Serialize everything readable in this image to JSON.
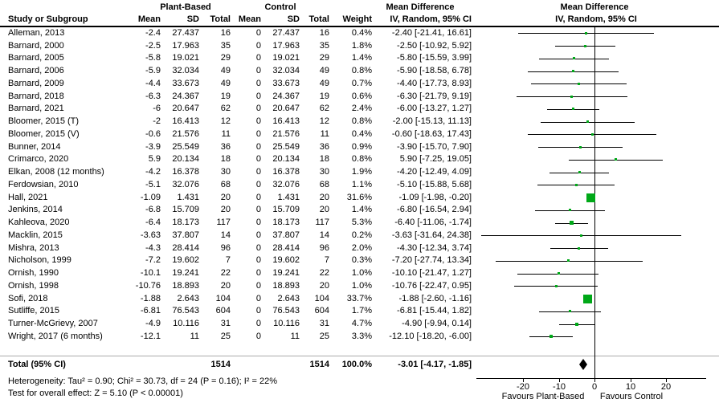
{
  "header": {
    "group1": "Plant-Based",
    "group2": "Control",
    "md_col_title": "Mean Difference",
    "plot_title": "Mean Difference",
    "study_col": "Study or Subgroup",
    "mean": "Mean",
    "sd": "SD",
    "total": "Total",
    "weight": "Weight",
    "iv_label": "IV, Random, 95% CI",
    "iv_label_plot": "IV, Random, 95% CI"
  },
  "chart_data": {
    "type": "forest",
    "effect_measure": "Mean Difference, IV, Random, 95% CI",
    "axis": {
      "tick_values": [
        -20,
        -10,
        0,
        10,
        20
      ],
      "tick_labels": [
        "-20",
        "-10",
        "0",
        "10",
        "20"
      ],
      "xmin": -33,
      "xmax": 31,
      "favours_left": "Favours Plant-Based",
      "favours_right": "Favours Control"
    },
    "studies": [
      {
        "name": "Alleman, 2013",
        "mean1": "-2.4",
        "sd1": "27.437",
        "n1": "16",
        "mean2": "0",
        "sd2": "27.437",
        "n2": "16",
        "weight": "0.4%",
        "md_text": "-2.40 [-21.41, 16.61]",
        "md": -2.4,
        "lo": -21.41,
        "hi": 16.61
      },
      {
        "name": "Barnard, 2000",
        "mean1": "-2.5",
        "sd1": "17.963",
        "n1": "35",
        "mean2": "0",
        "sd2": "17.963",
        "n2": "35",
        "weight": "1.8%",
        "md_text": "-2.50 [-10.92, 5.92]",
        "md": -2.5,
        "lo": -10.92,
        "hi": 5.92
      },
      {
        "name": "Barnard, 2005",
        "mean1": "-5.8",
        "sd1": "19.021",
        "n1": "29",
        "mean2": "0",
        "sd2": "19.021",
        "n2": "29",
        "weight": "1.4%",
        "md_text": "-5.80 [-15.59, 3.99]",
        "md": -5.8,
        "lo": -15.59,
        "hi": 3.99
      },
      {
        "name": "Barnard, 2006",
        "mean1": "-5.9",
        "sd1": "32.034",
        "n1": "49",
        "mean2": "0",
        "sd2": "32.034",
        "n2": "49",
        "weight": "0.8%",
        "md_text": "-5.90 [-18.58, 6.78]",
        "md": -5.9,
        "lo": -18.58,
        "hi": 6.78
      },
      {
        "name": "Barnard, 2009",
        "mean1": "-4.4",
        "sd1": "33.673",
        "n1": "49",
        "mean2": "0",
        "sd2": "33.673",
        "n2": "49",
        "weight": "0.7%",
        "md_text": "-4.40 [-17.73, 8.93]",
        "md": -4.4,
        "lo": -17.73,
        "hi": 8.93
      },
      {
        "name": "Barnard, 2018",
        "mean1": "-6.3",
        "sd1": "24.367",
        "n1": "19",
        "mean2": "0",
        "sd2": "24.367",
        "n2": "19",
        "weight": "0.6%",
        "md_text": "-6.30 [-21.79, 9.19]",
        "md": -6.3,
        "lo": -21.79,
        "hi": 9.19
      },
      {
        "name": "Barnard, 2021",
        "mean1": "-6",
        "sd1": "20.647",
        "n1": "62",
        "mean2": "0",
        "sd2": "20.647",
        "n2": "62",
        "weight": "2.4%",
        "md_text": "-6.00 [-13.27, 1.27]",
        "md": -6,
        "lo": -13.27,
        "hi": 1.27
      },
      {
        "name": "Bloomer, 2015 (T)",
        "mean1": "-2",
        "sd1": "16.413",
        "n1": "12",
        "mean2": "0",
        "sd2": "16.413",
        "n2": "12",
        "weight": "0.8%",
        "md_text": "-2.00 [-15.13, 11.13]",
        "md": -2,
        "lo": -15.13,
        "hi": 11.13
      },
      {
        "name": "Bloomer, 2015 (V)",
        "mean1": "-0.6",
        "sd1": "21.576",
        "n1": "11",
        "mean2": "0",
        "sd2": "21.576",
        "n2": "11",
        "weight": "0.4%",
        "md_text": "-0.60 [-18.63, 17.43]",
        "md": -0.6,
        "lo": -18.63,
        "hi": 17.43
      },
      {
        "name": "Bunner, 2014",
        "mean1": "-3.9",
        "sd1": "25.549",
        "n1": "36",
        "mean2": "0",
        "sd2": "25.549",
        "n2": "36",
        "weight": "0.9%",
        "md_text": "-3.90 [-15.70, 7.90]",
        "md": -3.9,
        "lo": -15.7,
        "hi": 7.9
      },
      {
        "name": "Crimarco, 2020",
        "mean1": "5.9",
        "sd1": "20.134",
        "n1": "18",
        "mean2": "0",
        "sd2": "20.134",
        "n2": "18",
        "weight": "0.8%",
        "md_text": "5.90 [-7.25, 19.05]",
        "md": 5.9,
        "lo": -7.25,
        "hi": 19.05
      },
      {
        "name": "Elkan, 2008 (12 months)",
        "mean1": "-4.2",
        "sd1": "16.378",
        "n1": "30",
        "mean2": "0",
        "sd2": "16.378",
        "n2": "30",
        "weight": "1.9%",
        "md_text": "-4.20 [-12.49, 4.09]",
        "md": -4.2,
        "lo": -12.49,
        "hi": 4.09
      },
      {
        "name": "Ferdowsian, 2010",
        "mean1": "-5.1",
        "sd1": "32.076",
        "n1": "68",
        "mean2": "0",
        "sd2": "32.076",
        "n2": "68",
        "weight": "1.1%",
        "md_text": "-5.10 [-15.88, 5.68]",
        "md": -5.1,
        "lo": -15.88,
        "hi": 5.68
      },
      {
        "name": "Hall, 2021",
        "mean1": "-1.09",
        "sd1": "1.431",
        "n1": "20",
        "mean2": "0",
        "sd2": "1.431",
        "n2": "20",
        "weight": "31.6%",
        "md_text": "-1.09 [-1.98, -0.20]",
        "md": -1.09,
        "lo": -1.98,
        "hi": -0.2
      },
      {
        "name": "Jenkins, 2014",
        "mean1": "-6.8",
        "sd1": "15.709",
        "n1": "20",
        "mean2": "0",
        "sd2": "15.709",
        "n2": "20",
        "weight": "1.4%",
        "md_text": "-6.80 [-16.54, 2.94]",
        "md": -6.8,
        "lo": -16.54,
        "hi": 2.94
      },
      {
        "name": "Kahleova, 2020",
        "mean1": "-6.4",
        "sd1": "18.173",
        "n1": "117",
        "mean2": "0",
        "sd2": "18.173",
        "n2": "117",
        "weight": "5.3%",
        "md_text": "-6.40 [-11.06, -1.74]",
        "md": -6.4,
        "lo": -11.06,
        "hi": -1.74
      },
      {
        "name": "Macklin, 2015",
        "mean1": "-3.63",
        "sd1": "37.807",
        "n1": "14",
        "mean2": "0",
        "sd2": "37.807",
        "n2": "14",
        "weight": "0.2%",
        "md_text": "-3.63 [-31.64, 24.38]",
        "md": -3.63,
        "lo": -31.64,
        "hi": 24.38
      },
      {
        "name": "Mishra, 2013",
        "mean1": "-4.3",
        "sd1": "28.414",
        "n1": "96",
        "mean2": "0",
        "sd2": "28.414",
        "n2": "96",
        "weight": "2.0%",
        "md_text": "-4.30 [-12.34, 3.74]",
        "md": -4.3,
        "lo": -12.34,
        "hi": 3.74
      },
      {
        "name": "Nicholson, 1999",
        "mean1": "-7.2",
        "sd1": "19.602",
        "n1": "7",
        "mean2": "0",
        "sd2": "19.602",
        "n2": "7",
        "weight": "0.3%",
        "md_text": "-7.20 [-27.74, 13.34]",
        "md": -7.2,
        "lo": -27.74,
        "hi": 13.34
      },
      {
        "name": "Ornish, 1990",
        "mean1": "-10.1",
        "sd1": "19.241",
        "n1": "22",
        "mean2": "0",
        "sd2": "19.241",
        "n2": "22",
        "weight": "1.0%",
        "md_text": "-10.10 [-21.47, 1.27]",
        "md": -10.1,
        "lo": -21.47,
        "hi": 1.27
      },
      {
        "name": "Ornish, 1998",
        "mean1": "-10.76",
        "sd1": "18.893",
        "n1": "20",
        "mean2": "0",
        "sd2": "18.893",
        "n2": "20",
        "weight": "1.0%",
        "md_text": "-10.76 [-22.47, 0.95]",
        "md": -10.76,
        "lo": -22.47,
        "hi": 0.95
      },
      {
        "name": "Sofi, 2018",
        "mean1": "-1.88",
        "sd1": "2.643",
        "n1": "104",
        "mean2": "0",
        "sd2": "2.643",
        "n2": "104",
        "weight": "33.7%",
        "md_text": "-1.88 [-2.60, -1.16]",
        "md": -1.88,
        "lo": -2.6,
        "hi": -1.16
      },
      {
        "name": "Sutliffe, 2015",
        "mean1": "-6.81",
        "sd1": "76.543",
        "n1": "604",
        "mean2": "0",
        "sd2": "76.543",
        "n2": "604",
        "weight": "1.7%",
        "md_text": "-6.81 [-15.44, 1.82]",
        "md": -6.81,
        "lo": -15.44,
        "hi": 1.82
      },
      {
        "name": "Turner-McGrievy, 2007",
        "mean1": "-4.9",
        "sd1": "10.116",
        "n1": "31",
        "mean2": "0",
        "sd2": "10.116",
        "n2": "31",
        "weight": "4.7%",
        "md_text": "-4.90 [-9.94, 0.14]",
        "md": -4.9,
        "lo": -9.94,
        "hi": 0.14
      },
      {
        "name": "Wright, 2017 (6 months)",
        "mean1": "-12.1",
        "sd1": "11",
        "n1": "25",
        "mean2": "0",
        "sd2": "11",
        "n2": "25",
        "weight": "3.3%",
        "md_text": "-12.10 [-18.20, -6.00]",
        "md": -12.1,
        "lo": -18.2,
        "hi": -6
      }
    ],
    "total": {
      "label": "Total (95% CI)",
      "n1": "1514",
      "n2": "1514",
      "weight": "100.0%",
      "md_text": "-3.01 [-4.17, -1.85]",
      "md": -3.01,
      "lo": -4.17,
      "hi": -1.85
    },
    "footer": {
      "heterogeneity": "Heterogeneity: Tau² = 0.90; Chi² = 30.73, df = 24 (P = 0.16); I² = 22%",
      "overall_effect": "Test for overall effect: Z = 5.10 (P < 0.00001)"
    },
    "colors": {
      "marker_green": "#00A818",
      "diamond_black": "#000000",
      "line_black": "#000000",
      "separator_gray": "#aaaaaa"
    }
  }
}
